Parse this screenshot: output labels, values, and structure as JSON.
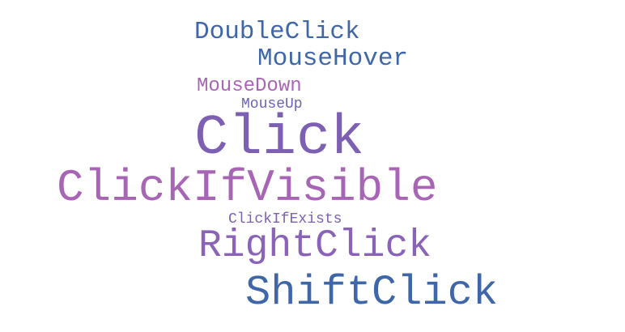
{
  "words": [
    {
      "key": "doubleclick",
      "text": "DoubleClick",
      "color": "#3e66a8"
    },
    {
      "key": "mousehover",
      "text": "MouseHover",
      "color": "#3e66a8"
    },
    {
      "key": "mousedown",
      "text": "MouseDown",
      "color": "#a865b6"
    },
    {
      "key": "mouseup",
      "text": "MouseUp",
      "color": "#6a64b6"
    },
    {
      "key": "click",
      "text": "Click",
      "color": "#7d60b2"
    },
    {
      "key": "clickifvisible",
      "text": "ClickIfVisible",
      "color": "#a865b6"
    },
    {
      "key": "clickifexists",
      "text": "ClickIfExists",
      "color": "#7d60b2"
    },
    {
      "key": "rightclick",
      "text": "RightClick",
      "color": "#8a63b9"
    },
    {
      "key": "shiftclick",
      "text": "ShiftClick",
      "color": "#3e66a8"
    }
  ]
}
